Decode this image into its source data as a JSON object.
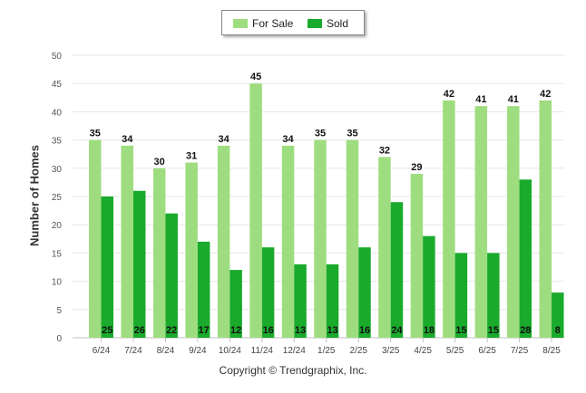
{
  "chart_data": {
    "type": "bar",
    "title": "",
    "xlabel": "",
    "ylabel": "Number of Homes",
    "ylim": [
      0,
      50
    ],
    "yticks": [
      0,
      5,
      10,
      15,
      20,
      25,
      30,
      35,
      40,
      45,
      50
    ],
    "grid": true,
    "legend_position": "top-center",
    "categories": [
      "6/24",
      "7/24",
      "8/24",
      "9/24",
      "10/24",
      "11/24",
      "12/24",
      "1/25",
      "2/25",
      "3/25",
      "4/25",
      "5/25",
      "6/25",
      "7/25",
      "8/25"
    ],
    "series": [
      {
        "name": "For Sale",
        "color": "#9edd7f",
        "label_position": "top",
        "values": [
          35,
          34,
          30,
          31,
          34,
          45,
          34,
          35,
          35,
          32,
          29,
          42,
          41,
          41,
          42
        ]
      },
      {
        "name": "Sold",
        "color": "#1aaa2c",
        "label_position": "base",
        "values": [
          25,
          26,
          22,
          17,
          12,
          16,
          13,
          13,
          16,
          24,
          18,
          15,
          15,
          28,
          8
        ]
      }
    ]
  },
  "legend": {
    "for_sale_label": "For Sale",
    "sold_label": "Sold"
  },
  "footer": {
    "copyright": "Copyright © Trendgraphix, Inc."
  }
}
